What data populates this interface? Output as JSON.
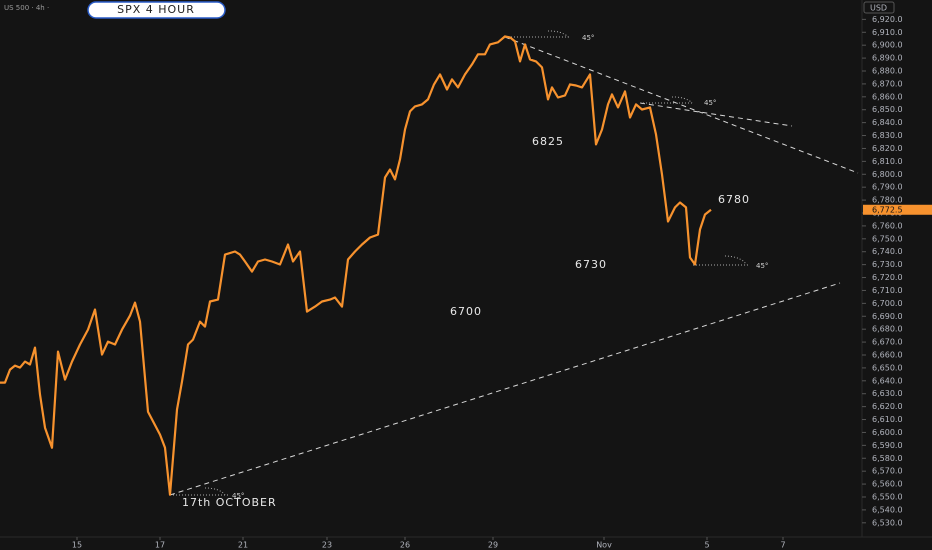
{
  "chart_data": {
    "type": "line",
    "title": "SPX 4 HOUR",
    "symbol_label": "US 500 · 4h · ",
    "currency": "USD",
    "last_price_label": "6,772.5",
    "annotations": [
      "6825",
      "6780",
      "6730",
      "6700",
      "17th OCTOBER",
      "45°",
      "45°",
      "45°",
      "45°"
    ],
    "xlim": [
      0,
      860
    ],
    "ylim": [
      6519,
      6935
    ],
    "xticks": [
      {
        "value": 77,
        "label": "15"
      },
      {
        "value": 160,
        "label": "17"
      },
      {
        "value": 243,
        "label": "21"
      },
      {
        "value": 327,
        "label": "23"
      },
      {
        "value": 405,
        "label": "26"
      },
      {
        "value": 493,
        "label": "29"
      },
      {
        "value": 604,
        "label": "Nov"
      },
      {
        "value": 707,
        "label": "5"
      },
      {
        "value": 783,
        "label": "7"
      }
    ],
    "yticks": [
      {
        "value": 6530,
        "label": "6,530.0"
      },
      {
        "value": 6540,
        "label": "6,540.0"
      },
      {
        "value": 6550,
        "label": "6,550.0"
      },
      {
        "value": 6560,
        "label": "6,560.0"
      },
      {
        "value": 6570,
        "label": "6,570.0"
      },
      {
        "value": 6580,
        "label": "6,580.0"
      },
      {
        "value": 6590,
        "label": "6,590.0"
      },
      {
        "value": 6600,
        "label": "6,600.0"
      },
      {
        "value": 6610,
        "label": "6,610.0"
      },
      {
        "value": 6620,
        "label": "6,620.0"
      },
      {
        "value": 6630,
        "label": "6,630.0"
      },
      {
        "value": 6640,
        "label": "6,640.0"
      },
      {
        "value": 6650,
        "label": "6,650.0"
      },
      {
        "value": 6660,
        "label": "6,660.0"
      },
      {
        "value": 6670,
        "label": "6,670.0"
      },
      {
        "value": 6680,
        "label": "6,680.0"
      },
      {
        "value": 6690,
        "label": "6,690.0"
      },
      {
        "value": 6700,
        "label": "6,700.0"
      },
      {
        "value": 6710,
        "label": "6,710.0"
      },
      {
        "value": 6720,
        "label": "6,720.0"
      },
      {
        "value": 6730,
        "label": "6,730.0"
      },
      {
        "value": 6740,
        "label": "6,740.0"
      },
      {
        "value": 6750,
        "label": "6,750.0"
      },
      {
        "value": 6760,
        "label": "6,760.0"
      },
      {
        "value": 6770,
        "label": "6,770.0"
      },
      {
        "value": 6780,
        "label": "6,780.0"
      },
      {
        "value": 6790,
        "label": "6,790.0"
      },
      {
        "value": 6800,
        "label": "6,800.0"
      },
      {
        "value": 6810,
        "label": "6,810.0"
      },
      {
        "value": 6820,
        "label": "6,820.0"
      },
      {
        "value": 6830,
        "label": "6,830.0"
      },
      {
        "value": 6840,
        "label": "6,840.0"
      },
      {
        "value": 6850,
        "label": "6,850.0"
      },
      {
        "value": 6860,
        "label": "6,860.0"
      },
      {
        "value": 6870,
        "label": "6,870.0"
      },
      {
        "value": 6880,
        "label": "6,880.0"
      },
      {
        "value": 6890,
        "label": "6,890.0"
      },
      {
        "value": 6900,
        "label": "6,900.0"
      },
      {
        "value": 6910,
        "label": "6,910.0"
      },
      {
        "value": 6920,
        "label": "6,920.0"
      }
    ],
    "x": [
      0,
      5,
      10,
      15,
      20,
      25,
      30,
      35,
      40,
      45,
      52,
      58,
      65,
      72,
      80,
      88,
      95,
      102,
      108,
      115,
      122,
      130,
      135,
      140,
      148,
      160,
      165,
      170,
      177,
      182,
      188,
      193,
      200,
      205,
      210,
      218,
      225,
      235,
      240,
      245,
      252,
      258,
      265,
      272,
      280,
      288,
      293,
      300,
      307,
      315,
      322,
      330,
      335,
      342,
      348,
      355,
      362,
      370,
      378,
      385,
      390,
      395,
      400,
      405,
      410,
      415,
      422,
      428,
      434,
      440,
      447,
      452,
      458,
      465,
      472,
      478,
      485,
      490,
      498,
      505,
      510,
      515,
      520,
      525,
      530,
      536,
      542,
      548,
      552,
      558,
      565,
      570,
      576,
      582,
      590,
      596,
      602,
      608,
      612,
      618,
      625,
      630,
      636,
      642,
      650,
      656,
      662,
      668,
      675,
      680,
      686,
      690,
      695,
      700,
      705,
      711
    ],
    "series": [
      {
        "name": "US 500",
        "color": "#f7922e",
        "values": [
          6638.6,
          6638.6,
          6648.7,
          6651.8,
          6650.2,
          6654.9,
          6652.6,
          6665.7,
          6629.3,
          6603.7,
          6588.2,
          6662.6,
          6640.9,
          6654.9,
          6668.1,
          6679.7,
          6695.2,
          6660.3,
          6670.4,
          6668.1,
          6679.7,
          6690.5,
          6700.6,
          6685.9,
          6616.1,
          6598.3,
          6588.2,
          6551.8,
          6617.7,
          6639.4,
          6668.1,
          6671.9,
          6685.9,
          6682,
          6701.4,
          6702.9,
          6737.8,
          6740.2,
          6737.8,
          6732.4,
          6724.6,
          6732.4,
          6734,
          6732.4,
          6730.1,
          6745.6,
          6732.4,
          6740.2,
          6693.6,
          6697.5,
          6701.4,
          6702.9,
          6704.5,
          6697.5,
          6734,
          6740.2,
          6745.6,
          6751,
          6753.3,
          6797.5,
          6803.7,
          6796,
          6811.5,
          6834.7,
          6848.7,
          6852.6,
          6854.1,
          6858,
          6869.6,
          6877.4,
          6865.7,
          6873.5,
          6867.3,
          6877.4,
          6885.1,
          6892.9,
          6892.9,
          6900.6,
          6902.2,
          6906.8,
          6906,
          6902.9,
          6887.4,
          6900.6,
          6889,
          6887.4,
          6882.8,
          6858,
          6867.3,
          6859.5,
          6861.1,
          6869.6,
          6868.8,
          6867.3,
          6877.4,
          6823.1,
          6834.7,
          6854.1,
          6861.9,
          6851.8,
          6864.2,
          6844,
          6854.1,
          6850.2,
          6851.8,
          6830.9,
          6799.8,
          6763.4,
          6774.3,
          6778.1,
          6774.3,
          6735.5,
          6730.1,
          6757.2,
          6768.8,
          6772.5
        ]
      }
    ]
  }
}
